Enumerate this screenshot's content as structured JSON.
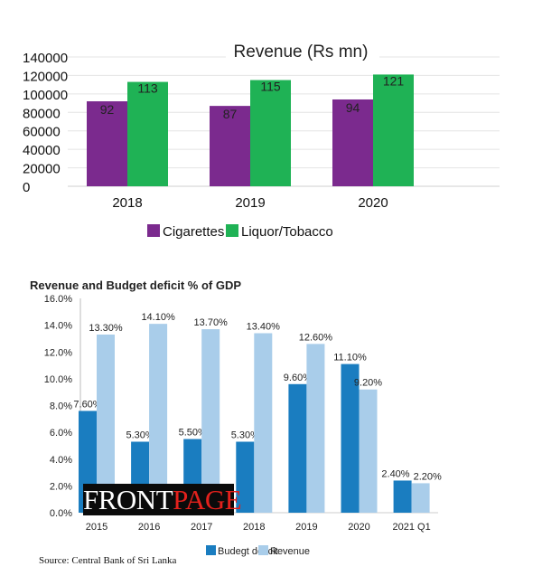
{
  "chart_data": [
    {
      "type": "bar",
      "title": "Revenue (Rs mn)",
      "categories": [
        "2018",
        "2019",
        "2020"
      ],
      "ylim": [
        0,
        140000
      ],
      "yticks": [
        "0",
        "20000",
        "40000",
        "60000",
        "80000",
        "100000",
        "120000",
        "140000"
      ],
      "grid": true,
      "legend": "bottom",
      "series": [
        {
          "name": "Cigarettes",
          "values": [
            92000,
            87000,
            94000
          ],
          "labels": [
            "92",
            "87",
            "94"
          ],
          "color": "#7b2a8e"
        },
        {
          "name": "Liquor/Tobacco",
          "values": [
            113000,
            115000,
            121000
          ],
          "labels": [
            "113",
            "115",
            "121"
          ],
          "color": "#1fb255"
        }
      ]
    },
    {
      "type": "bar",
      "title": "Revenue and Budget deficit % of GDP",
      "categories": [
        "2015",
        "2016",
        "2017",
        "2018",
        "2019",
        "2020",
        "2021 Q1"
      ],
      "ylim": [
        0,
        16
      ],
      "yticks": [
        "0.0%",
        "2.0%",
        "4.0%",
        "6.0%",
        "8.0%",
        "10.0%",
        "12.0%",
        "14.0%",
        "16.0%"
      ],
      "grid": false,
      "legend": "bottom",
      "series": [
        {
          "name": "Budegt deficit",
          "values": [
            7.6,
            5.3,
            5.5,
            5.3,
            9.6,
            11.1,
            2.4
          ],
          "labels": [
            "7.60%",
            "5.30%",
            "5.50%",
            "5.30%",
            "9.60%",
            "11.10%",
            "2.40%"
          ],
          "color": "#1a7dc0"
        },
        {
          "name": "Revenue",
          "values": [
            13.3,
            14.1,
            13.7,
            13.4,
            12.6,
            9.2,
            2.2
          ],
          "labels": [
            "13.30%",
            "14.10%",
            "13.70%",
            "13.40%",
            "12.60%",
            "9.20%",
            "2.20%"
          ],
          "color": "#a9cdea"
        }
      ]
    }
  ],
  "source": "Source: Central Bank of Sri Lanka",
  "logo": {
    "part1": "FRONT",
    "part2": "PAGE"
  }
}
